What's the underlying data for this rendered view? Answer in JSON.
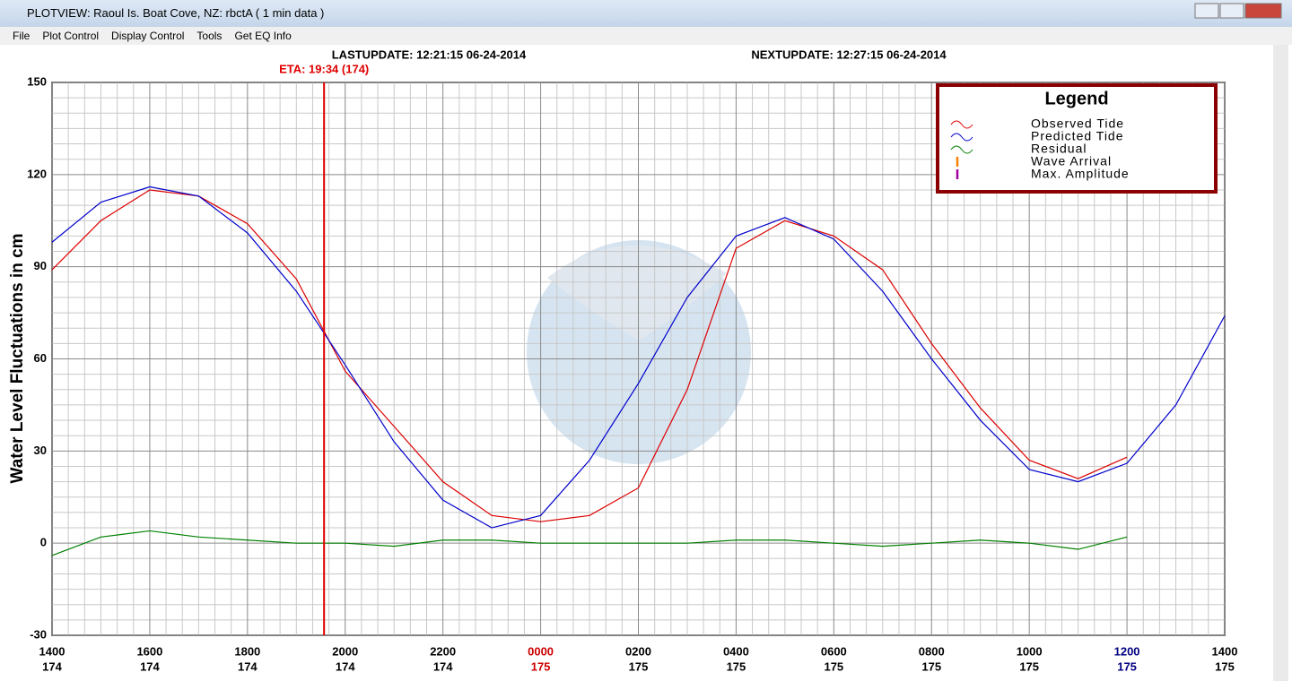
{
  "window": {
    "title": "PLOTVIEW:   Raoul Is. Boat Cove, NZ: rbctA ( 1 min data )",
    "menu": [
      "File",
      "Plot Control",
      "Display Control",
      "Tools",
      "Get EQ Info"
    ]
  },
  "chart_data": {
    "type": "line",
    "last_update": "LASTUPDATE: 12:21:15 06-24-2014",
    "next_update": "NEXTUPDATE: 12:27:15 06-24-2014",
    "eta": {
      "x": 5.567,
      "label": "ETA: 19:34 (174)",
      "color": "#e00000"
    },
    "y_label": "Water Level Fluctuations in cm",
    "legend_title": "Legend",
    "legend_position": "top-right",
    "x": [
      0,
      1,
      2,
      3,
      4,
      5,
      6,
      7,
      8,
      9,
      10,
      11,
      12,
      13,
      14,
      15,
      16,
      17,
      18,
      19,
      20,
      21,
      22,
      23,
      24
    ],
    "series": [
      {
        "name": "Observed Tide",
        "color": "#dd0000",
        "values": [
          89,
          105,
          115,
          113,
          104,
          86,
          56,
          38,
          20,
          9,
          7,
          9,
          18,
          50,
          96,
          105,
          100,
          89,
          65,
          44,
          27,
          21,
          28,
          null,
          null
        ]
      },
      {
        "name": "Predicted Tide",
        "color": "#0000cc",
        "values": [
          98,
          111,
          116,
          113,
          101,
          82,
          58,
          33,
          14,
          5,
          9,
          27,
          52,
          80,
          100,
          106,
          99,
          82,
          60,
          40,
          24,
          20,
          26,
          45,
          74
        ]
      },
      {
        "name": "Residual",
        "color": "#008000",
        "values": [
          -4,
          2,
          4,
          2,
          1,
          0,
          0,
          -1,
          1,
          1,
          0,
          0,
          0,
          0,
          1,
          1,
          0,
          -1,
          0,
          1,
          0,
          -2,
          2,
          null,
          null
        ]
      }
    ],
    "markers": [
      {
        "name": "Wave Arrival",
        "color": "#ff8000"
      },
      {
        "name": "Max. Amplitude",
        "color": "#a000a0"
      }
    ],
    "xlim": [
      0,
      24
    ],
    "xticks": [
      {
        "value": 0,
        "label": "1400"
      },
      {
        "value": 2,
        "label": "1600"
      },
      {
        "value": 4,
        "label": "1800"
      },
      {
        "value": 6,
        "label": "2000"
      },
      {
        "value": 8,
        "label": "2200"
      },
      {
        "value": 10,
        "label": "0000"
      },
      {
        "value": 12,
        "label": "0200"
      },
      {
        "value": 14,
        "label": "0400"
      },
      {
        "value": 16,
        "label": "0600"
      },
      {
        "value": 18,
        "label": "0800"
      },
      {
        "value": 20,
        "label": "1000"
      },
      {
        "value": 22,
        "label": "1200"
      },
      {
        "value": 24,
        "label": "1400"
      }
    ],
    "xtick_days": [
      "174",
      "174",
      "174",
      "174",
      "174",
      "175",
      "175",
      "175",
      "175",
      "175",
      "175",
      "175",
      "175"
    ],
    "xtick_colors": [
      "#000000",
      "#000000",
      "#000000",
      "#000000",
      "#000000",
      "#cc0000",
      "#000000",
      "#000000",
      "#000000",
      "#000000",
      "#000000",
      "#000080",
      "#000000"
    ],
    "ylim": [
      -30,
      150
    ],
    "yticks": [
      -30,
      0,
      30,
      60,
      90,
      120,
      150
    ],
    "grid": true
  }
}
